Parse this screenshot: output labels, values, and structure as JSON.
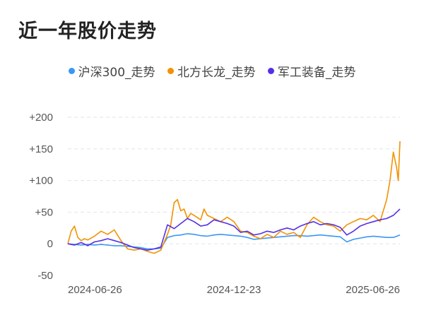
{
  "page": {
    "title": "近一年股价走势"
  },
  "chart_data": {
    "type": "line",
    "title": "近一年股价走势",
    "xlabel": "",
    "ylabel": "",
    "ylim": [
      -50,
      200
    ],
    "grid": true,
    "legend_position": "top-center",
    "y_ticks": [
      "+200",
      "+150",
      "+100",
      "+50",
      "0",
      "-50"
    ],
    "x_ticks": [
      "2024-06-26",
      "2024-12-23",
      "2025-06-26"
    ],
    "x_index_range": [
      0,
      100
    ],
    "x_tick_index": [
      0,
      50,
      100
    ],
    "series": [
      {
        "name": "沪深300_走势",
        "color": "#3a97f4",
        "x": [
          0,
          2,
          4,
          6,
          8,
          10,
          12,
          14,
          16,
          18,
          20,
          22,
          24,
          26,
          28,
          30,
          32,
          34,
          36,
          38,
          40,
          42,
          44,
          46,
          48,
          50,
          52,
          54,
          56,
          58,
          60,
          62,
          64,
          66,
          68,
          70,
          72,
          74,
          76,
          78,
          80,
          82,
          84,
          86,
          88,
          90,
          92,
          94,
          96,
          98,
          100
        ],
        "values": [
          0,
          -1,
          -2,
          -1,
          -2,
          -1,
          -2,
          -3,
          -3,
          -4,
          -5,
          -6,
          -8,
          -8,
          -7,
          10,
          13,
          14,
          16,
          15,
          13,
          12,
          14,
          15,
          14,
          13,
          12,
          10,
          7,
          8,
          9,
          10,
          11,
          12,
          13,
          13,
          12,
          13,
          14,
          13,
          12,
          11,
          3,
          7,
          9,
          11,
          12,
          11,
          10,
          10,
          14
        ]
      },
      {
        "name": "北方长龙_走势",
        "color": "#f29200",
        "x": [
          0,
          1,
          2,
          3,
          4,
          5,
          6,
          8,
          10,
          12,
          14,
          16,
          18,
          20,
          22,
          24,
          26,
          28,
          30,
          31,
          32,
          33,
          34,
          35,
          36,
          37,
          38,
          40,
          41,
          42,
          44,
          46,
          48,
          50,
          52,
          54,
          56,
          58,
          60,
          62,
          64,
          66,
          68,
          70,
          72,
          74,
          76,
          78,
          80,
          82,
          84,
          86,
          88,
          90,
          92,
          94,
          96,
          97,
          98,
          99,
          99.5,
          100
        ],
        "values": [
          0,
          20,
          28,
          10,
          5,
          8,
          6,
          12,
          20,
          15,
          22,
          5,
          -8,
          -10,
          -8,
          -12,
          -15,
          -10,
          15,
          30,
          65,
          70,
          52,
          55,
          40,
          48,
          45,
          38,
          55,
          45,
          40,
          35,
          42,
          35,
          20,
          18,
          12,
          8,
          15,
          10,
          20,
          15,
          18,
          10,
          30,
          42,
          35,
          30,
          28,
          20,
          30,
          35,
          40,
          38,
          45,
          35,
          70,
          100,
          145,
          120,
          100,
          162
        ]
      },
      {
        "name": "军工装备_走势",
        "color": "#5530e6",
        "x": [
          0,
          2,
          4,
          6,
          8,
          10,
          12,
          14,
          16,
          18,
          20,
          22,
          24,
          26,
          28,
          30,
          32,
          34,
          36,
          38,
          40,
          42,
          44,
          46,
          48,
          50,
          52,
          54,
          56,
          58,
          60,
          62,
          64,
          66,
          68,
          70,
          72,
          74,
          76,
          78,
          80,
          82,
          84,
          86,
          88,
          90,
          92,
          94,
          96,
          98,
          100
        ],
        "values": [
          0,
          -2,
          2,
          -3,
          3,
          5,
          8,
          5,
          2,
          -2,
          -6,
          -8,
          -10,
          -8,
          -5,
          30,
          24,
          32,
          40,
          35,
          28,
          30,
          38,
          35,
          32,
          28,
          18,
          20,
          14,
          16,
          20,
          18,
          22,
          25,
          22,
          28,
          32,
          35,
          30,
          32,
          30,
          26,
          14,
          20,
          28,
          32,
          35,
          38,
          40,
          45,
          55
        ]
      }
    ]
  }
}
